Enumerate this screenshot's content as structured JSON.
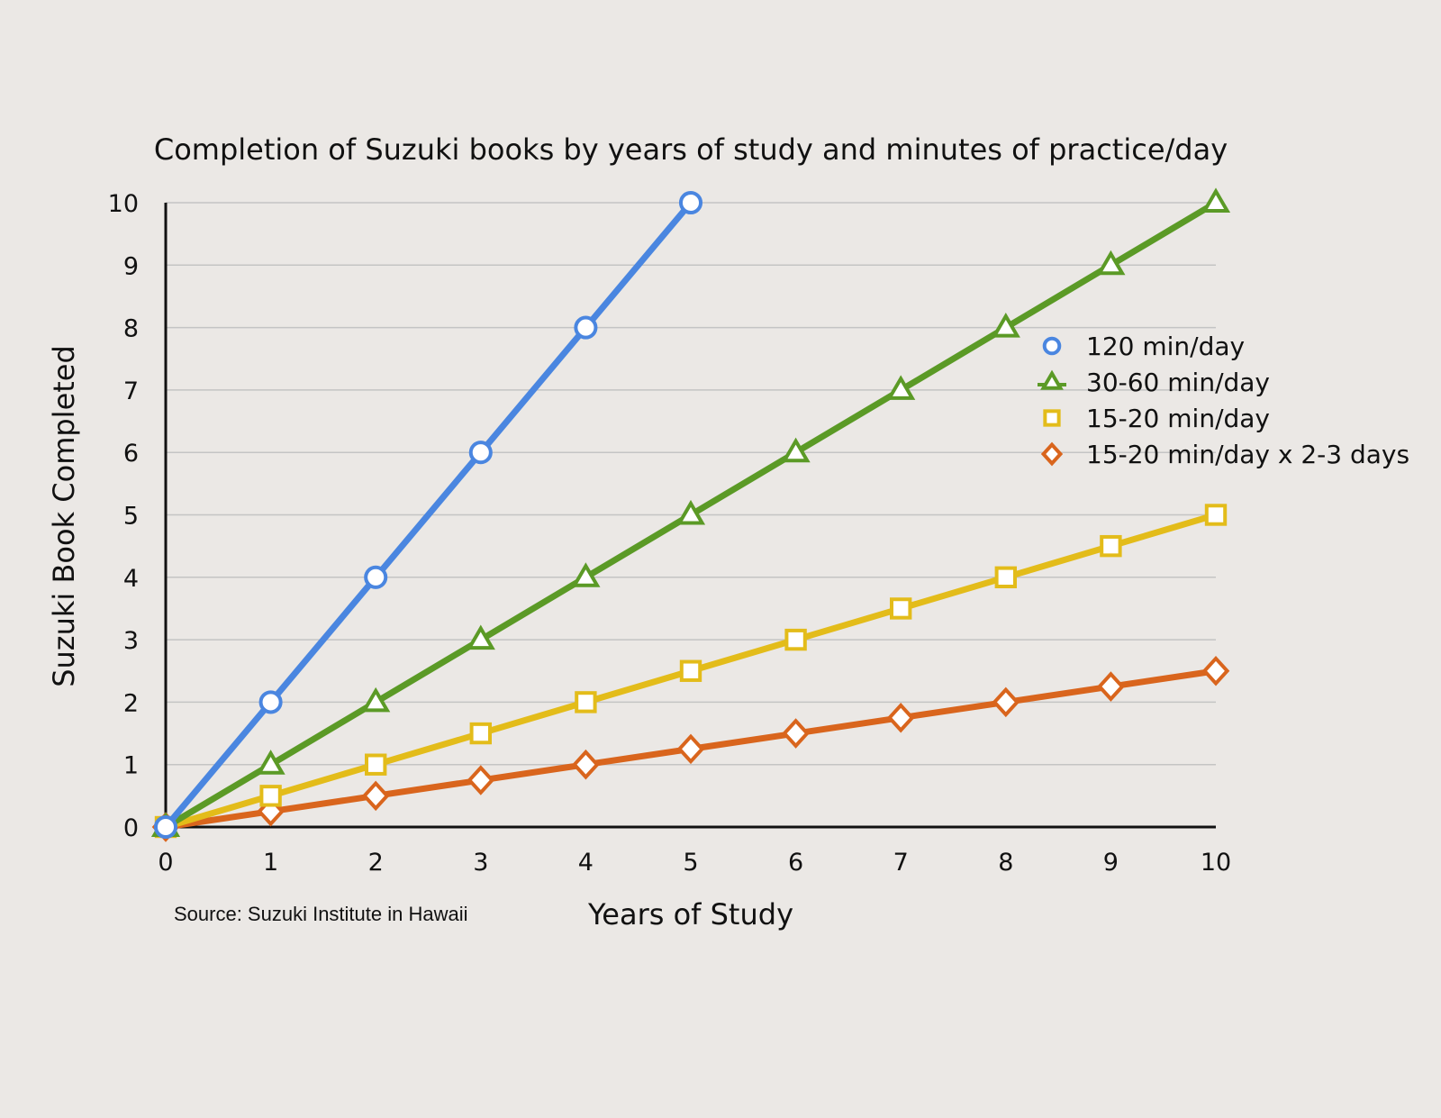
{
  "chart_data": {
    "type": "line",
    "title": "Completion of Suzuki books by years of study and minutes of practice/day",
    "xlabel": "Years of Study",
    "ylabel": "Suzuki Book Completed",
    "xlim": [
      0,
      10
    ],
    "ylim": [
      0,
      10
    ],
    "x_ticks": [
      "0",
      "1",
      "2",
      "3",
      "4",
      "5",
      "6",
      "7",
      "8",
      "9",
      "10"
    ],
    "y_ticks": [
      "0",
      "1",
      "2",
      "3",
      "4",
      "5",
      "6",
      "7",
      "8",
      "9",
      "10"
    ],
    "grid": true,
    "legend_position": "right",
    "source": "Source: Suzuki Institute in Hawaii",
    "series": [
      {
        "name": "120 min/day",
        "marker": "circle",
        "color": "#4a86e0",
        "x": [
          0,
          1,
          2,
          3,
          4,
          5
        ],
        "y": [
          0,
          2,
          4,
          6,
          8,
          10
        ]
      },
      {
        "name": "30-60 min/day",
        "marker": "triangle",
        "color": "#5b9a26",
        "x": [
          0,
          1,
          2,
          3,
          4,
          5,
          6,
          7,
          8,
          9,
          10
        ],
        "y": [
          0,
          1,
          2,
          3,
          4,
          5,
          6,
          7,
          8,
          9,
          10
        ]
      },
      {
        "name": "15-20 min/day",
        "marker": "square",
        "color": "#e3bc1a",
        "x": [
          0,
          1,
          2,
          3,
          4,
          5,
          6,
          7,
          8,
          9,
          10
        ],
        "y": [
          0,
          0.5,
          1,
          1.5,
          2,
          2.5,
          3,
          3.5,
          4,
          4.5,
          5
        ]
      },
      {
        "name": "15-20 min/day x 2-3 days",
        "marker": "diamond",
        "color": "#d9651d",
        "x": [
          0,
          1,
          2,
          3,
          4,
          5,
          6,
          7,
          8,
          9,
          10
        ],
        "y": [
          0,
          0.25,
          0.5,
          0.75,
          1,
          1.25,
          1.5,
          1.75,
          2,
          2.25,
          2.5
        ]
      }
    ]
  }
}
